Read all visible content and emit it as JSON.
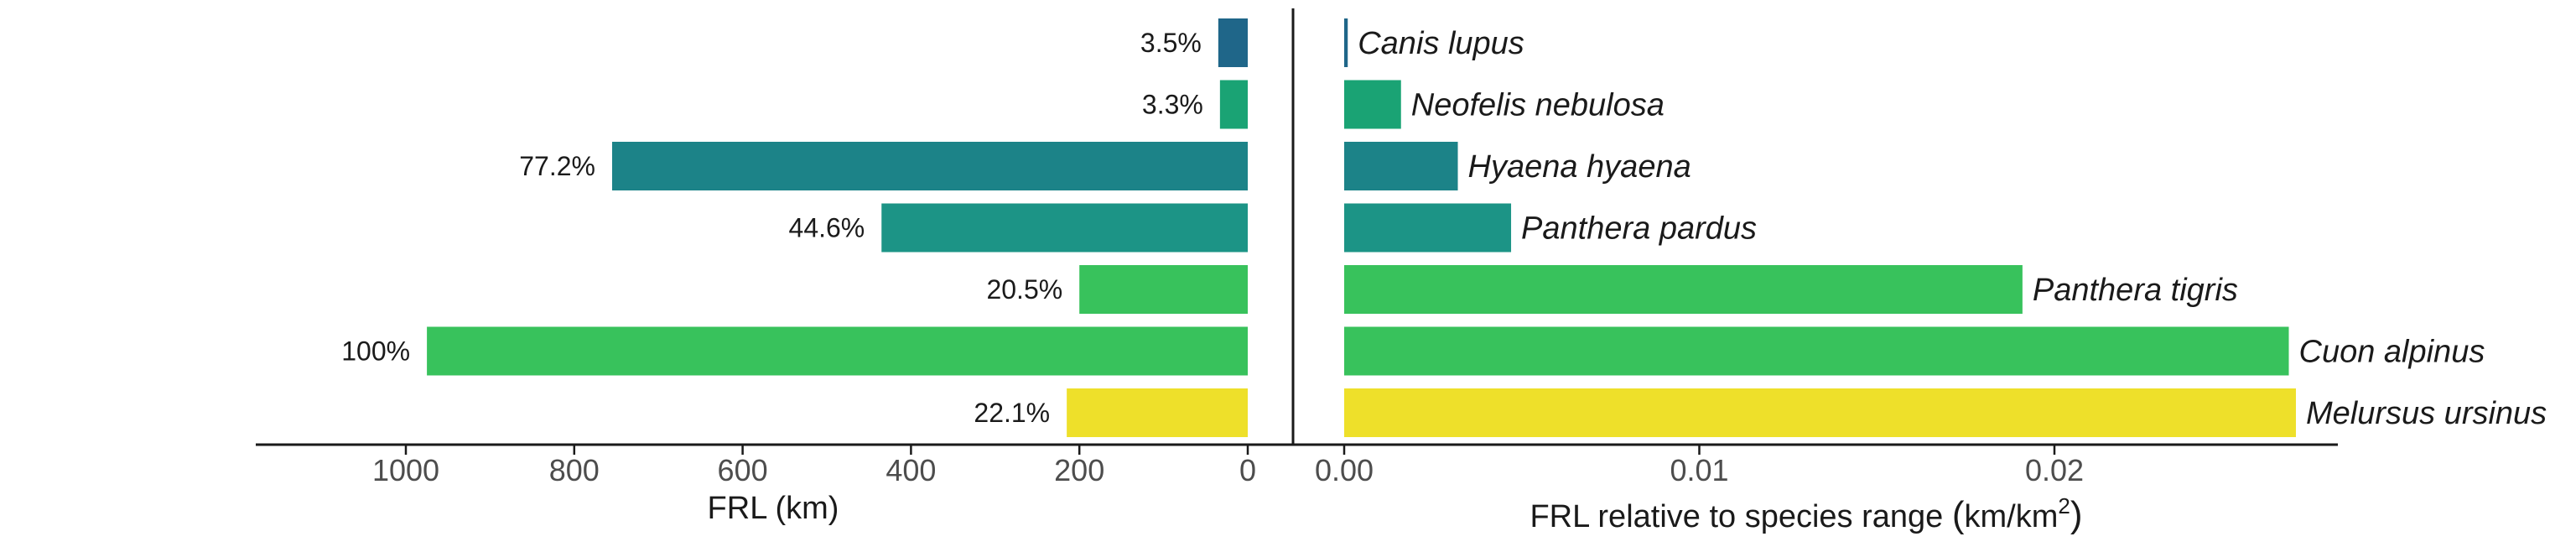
{
  "chart_data": [
    {
      "type": "bar",
      "orientation": "horizontal",
      "xaxis_reversed": true,
      "categories": [
        "Canis lupus",
        "Neofelis nebulosa",
        "Hyaena hyaena",
        "Panthera pardus",
        "Panthera tigris",
        "Cuon alpinus",
        "Melursus ursinus"
      ],
      "values": [
        35,
        33,
        755,
        435,
        200,
        975,
        215
      ],
      "labels": [
        "3.5%",
        "3.3%",
        "77.2%",
        "44.6%",
        "20.5%",
        "100%",
        "22.1%"
      ],
      "xlabel": "FRL (km)",
      "xticks": [
        1000,
        800,
        600,
        400,
        200,
        0
      ],
      "xlim": [
        0,
        1130
      ]
    },
    {
      "type": "bar",
      "orientation": "horizontal",
      "categories": [
        "Canis lupus",
        "Neofelis nebulosa",
        "Hyaena hyaena",
        "Panthera pardus",
        "Panthera tigris",
        "Cuon alpinus",
        "Melursus ursinus"
      ],
      "values": [
        0.0001,
        0.0016,
        0.0032,
        0.0047,
        0.0191,
        0.0266,
        0.0268
      ],
      "xlabel": "FRL relative to species range",
      "xlabel_unit": "km/km",
      "xlabel_unit_exp": "2",
      "xticks": [
        "0.00",
        "0.01",
        "0.02"
      ],
      "xlim": [
        0,
        0.028
      ]
    }
  ],
  "colors": [
    "#1f6689",
    "#1aa374",
    "#1c8388",
    "#1c9486",
    "#38c25c",
    "#38c25c",
    "#eee02a"
  ]
}
